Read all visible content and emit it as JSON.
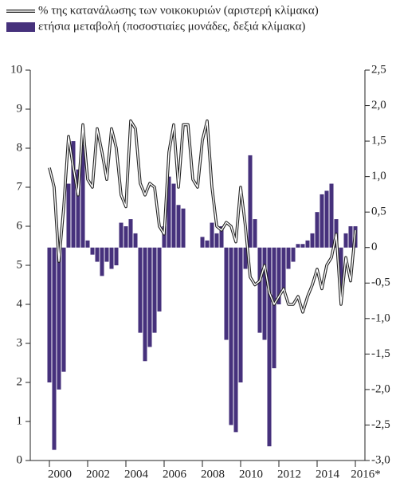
{
  "chart_data": {
    "type": "bar-line",
    "x": [
      2000,
      2000.25,
      2000.5,
      2000.75,
      2001,
      2001.25,
      2001.5,
      2001.75,
      2002,
      2002.25,
      2002.5,
      2002.75,
      2003,
      2003.25,
      2003.5,
      2003.75,
      2004,
      2004.25,
      2004.5,
      2004.75,
      2005,
      2005.25,
      2005.5,
      2005.75,
      2006,
      2006.25,
      2006.5,
      2006.75,
      2007,
      2007.25,
      2007.5,
      2007.75,
      2008,
      2008.25,
      2008.5,
      2008.75,
      2009,
      2009.25,
      2009.5,
      2009.75,
      2010,
      2010.25,
      2010.5,
      2010.75,
      2011,
      2011.25,
      2011.5,
      2011.75,
      2012,
      2012.25,
      2012.5,
      2012.75,
      2013,
      2013.25,
      2013.5,
      2013.75,
      2014,
      2014.25,
      2014.5,
      2014.75,
      2015,
      2015.25,
      2015.5,
      2015.75,
      2016
    ],
    "series": [
      {
        "name": "% της κατανάλωσης των νοικοκυριών (αριστερή κλίμακα)",
        "color": "#222222",
        "kind": "line",
        "values": [
          7.5,
          7.0,
          5.1,
          6.5,
          8.3,
          7.5,
          6.8,
          8.6,
          7.2,
          7.0,
          8.5,
          7.9,
          7.2,
          8.5,
          8.0,
          6.8,
          6.5,
          8.7,
          8.5,
          7.1,
          6.8,
          7.1,
          7.0,
          6.0,
          5.8,
          7.9,
          8.6,
          7.0,
          8.6,
          8.6,
          7.2,
          7.0,
          8.2,
          8.7,
          7.0,
          6.0,
          5.9,
          6.1,
          6.0,
          5.6,
          7.0,
          6.0,
          4.7,
          4.5,
          4.6,
          5.0,
          4.3,
          4.0,
          4.2,
          4.4,
          4.0,
          4.0,
          4.2,
          3.8,
          4.2,
          4.5,
          4.9,
          4.4,
          5.0,
          5.2,
          5.8,
          4.0,
          5.2,
          4.6,
          5.9
        ]
      },
      {
        "name": "ετήσια μεταβολή (ποσοστιαίες μονάδες, δεξιά κλίμακα)",
        "color": "#46317c",
        "kind": "bar",
        "axis": "y2",
        "values": [
          -1.9,
          -2.85,
          -2.0,
          -1.75,
          0.9,
          1.5,
          1.1,
          1.45,
          0.1,
          -0.1,
          -0.2,
          -0.4,
          -0.2,
          -0.3,
          -0.25,
          0.35,
          0.3,
          0.4,
          0.2,
          -1.2,
          -1.6,
          -1.4,
          -1.2,
          -0.9,
          0.3,
          1.0,
          0.9,
          0.6,
          0.55,
          0,
          0,
          0,
          0.15,
          0.1,
          0.35,
          0.2,
          0.3,
          -1.3,
          -2.5,
          -2.6,
          -1.9,
          -0.3,
          1.3,
          0.4,
          -1.2,
          -1.3,
          -2.8,
          -1.7,
          -0.8,
          -0.6,
          -0.3,
          -0.2,
          0.05,
          0.05,
          0.1,
          0.2,
          0.5,
          0.75,
          0.8,
          0.9,
          0.4,
          -0.7,
          0.2,
          0.3,
          0.3
        ]
      }
    ],
    "xlim": [
      1999,
      2016.5
    ],
    "xticks": [
      2000,
      2002,
      2004,
      2006,
      2008,
      2010,
      2012,
      2014,
      {
        "value": 2016,
        "label": "2016*"
      }
    ],
    "ylim": [
      0,
      10
    ],
    "yticks": [
      0,
      1,
      2,
      3,
      4,
      5,
      6,
      7,
      8,
      9,
      10
    ],
    "y2lim": [
      -3,
      2.5
    ],
    "y2ticks": [
      {
        "value": -3,
        "label": "-3,0"
      },
      {
        "value": -2.5,
        "label": "-2,5"
      },
      {
        "value": -2,
        "label": "-2,0"
      },
      {
        "value": -1.5,
        "label": "-1,5"
      },
      {
        "value": -1,
        "label": "-1,0"
      },
      {
        "value": -0.5,
        "label": "-0,5"
      },
      0,
      {
        "value": 0.5,
        "label": "0,5"
      },
      {
        "value": 1,
        "label": "1,0"
      },
      {
        "value": 1.5,
        "label": "1,5"
      },
      {
        "value": 2,
        "label": "2,0"
      },
      {
        "value": 2.5,
        "label": "2,5"
      }
    ],
    "grid": false
  }
}
